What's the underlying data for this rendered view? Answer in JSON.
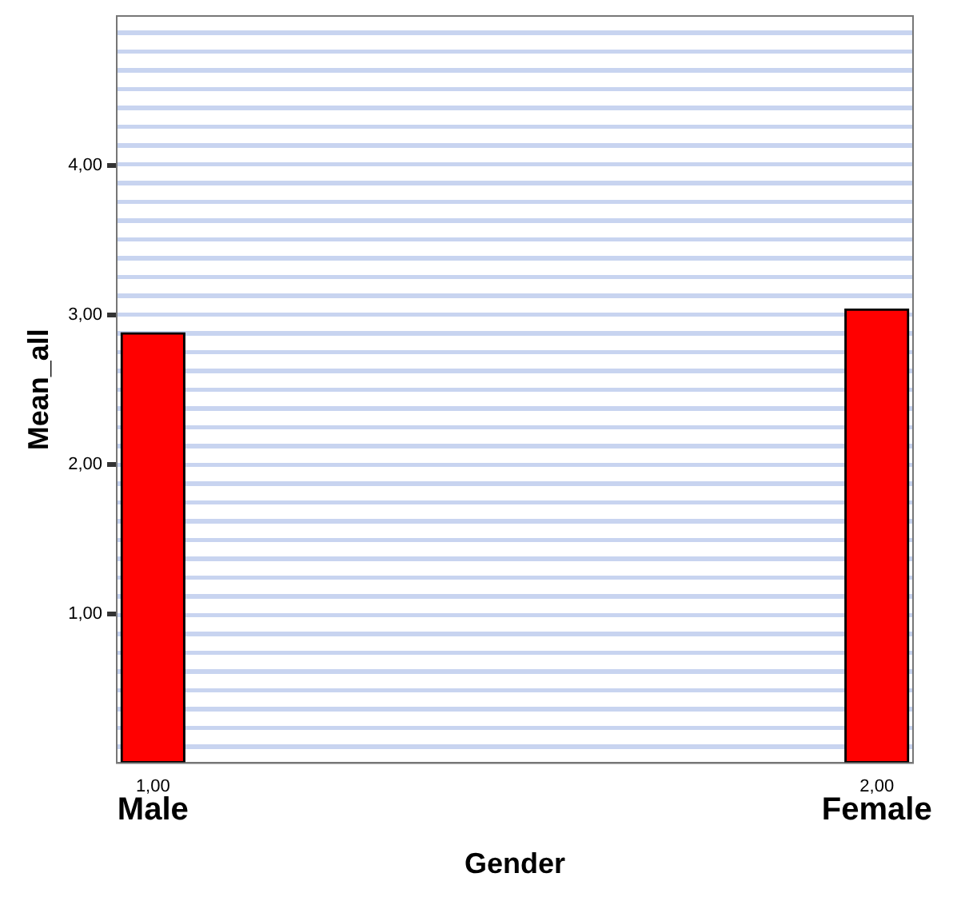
{
  "chart_data": {
    "type": "bar",
    "xlabel": "Gender",
    "ylabel": "Mean_all",
    "x": [
      1,
      2
    ],
    "series": [
      {
        "color": "#ff0000",
        "values": [
          2.88,
          3.04
        ]
      }
    ],
    "xlim": [
      0.95,
      2.05
    ],
    "xticks": [
      {
        "value": 1,
        "label": "1,00"
      },
      {
        "value": 2,
        "label": "2,00"
      }
    ],
    "ylim": [
      0,
      5
    ],
    "yticks": [
      {
        "value": 1,
        "label": "1,00"
      },
      {
        "value": 2,
        "label": "2,00"
      },
      {
        "value": 3,
        "label": "3,00"
      },
      {
        "value": 4,
        "label": "4,00"
      }
    ],
    "annotations": [
      "Male",
      "Female"
    ],
    "grid": false,
    "legend": false
  }
}
